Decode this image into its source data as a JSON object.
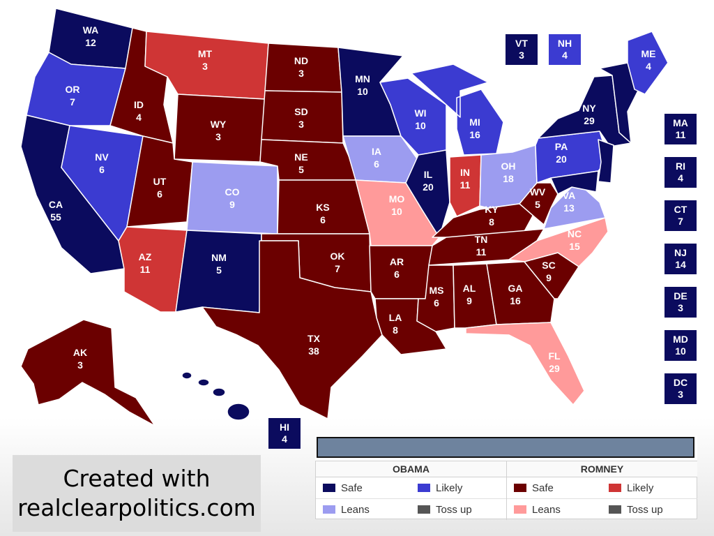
{
  "colors": {
    "obama_safe": "#0b0b5e",
    "obama_likely": "#3b3bd1",
    "obama_leans": "#9c9cf0",
    "romney_safe": "#6b0000",
    "romney_likely": "#cf3535",
    "romney_leans": "#ff9a9a",
    "tossup": "#555555"
  },
  "states": {
    "WA": {
      "abbr": "WA",
      "ev": "12",
      "rating": "obama_safe"
    },
    "OR": {
      "abbr": "OR",
      "ev": "7",
      "rating": "obama_likely"
    },
    "CA": {
      "abbr": "CA",
      "ev": "55",
      "rating": "obama_safe"
    },
    "NV": {
      "abbr": "NV",
      "ev": "6",
      "rating": "obama_likely"
    },
    "ID": {
      "abbr": "ID",
      "ev": "4",
      "rating": "romney_safe"
    },
    "MT": {
      "abbr": "MT",
      "ev": "3",
      "rating": "romney_likely"
    },
    "WY": {
      "abbr": "WY",
      "ev": "3",
      "rating": "romney_safe"
    },
    "UT": {
      "abbr": "UT",
      "ev": "6",
      "rating": "romney_safe"
    },
    "CO": {
      "abbr": "CO",
      "ev": "9",
      "rating": "obama_leans"
    },
    "AZ": {
      "abbr": "AZ",
      "ev": "11",
      "rating": "romney_likely"
    },
    "NM": {
      "abbr": "NM",
      "ev": "5",
      "rating": "obama_safe"
    },
    "ND": {
      "abbr": "ND",
      "ev": "3",
      "rating": "romney_safe"
    },
    "SD": {
      "abbr": "SD",
      "ev": "3",
      "rating": "romney_safe"
    },
    "NE": {
      "abbr": "NE",
      "ev": "5",
      "rating": "romney_safe"
    },
    "KS": {
      "abbr": "KS",
      "ev": "6",
      "rating": "romney_safe"
    },
    "OK": {
      "abbr": "OK",
      "ev": "7",
      "rating": "romney_safe"
    },
    "TX": {
      "abbr": "TX",
      "ev": "38",
      "rating": "romney_safe"
    },
    "MN": {
      "abbr": "MN",
      "ev": "10",
      "rating": "obama_safe"
    },
    "IA": {
      "abbr": "IA",
      "ev": "6",
      "rating": "obama_leans"
    },
    "MO": {
      "abbr": "MO",
      "ev": "10",
      "rating": "romney_leans"
    },
    "AR": {
      "abbr": "AR",
      "ev": "6",
      "rating": "romney_safe"
    },
    "LA": {
      "abbr": "LA",
      "ev": "8",
      "rating": "romney_safe"
    },
    "WI": {
      "abbr": "WI",
      "ev": "10",
      "rating": "obama_likely"
    },
    "IL": {
      "abbr": "IL",
      "ev": "20",
      "rating": "obama_safe"
    },
    "MI": {
      "abbr": "MI",
      "ev": "16",
      "rating": "obama_likely"
    },
    "IN": {
      "abbr": "IN",
      "ev": "11",
      "rating": "romney_likely"
    },
    "OH": {
      "abbr": "OH",
      "ev": "18",
      "rating": "obama_leans"
    },
    "KY": {
      "abbr": "KY",
      "ev": "8",
      "rating": "romney_safe"
    },
    "TN": {
      "abbr": "TN",
      "ev": "11",
      "rating": "romney_safe"
    },
    "MS": {
      "abbr": "MS",
      "ev": "6",
      "rating": "romney_safe"
    },
    "AL": {
      "abbr": "AL",
      "ev": "9",
      "rating": "romney_safe"
    },
    "GA": {
      "abbr": "GA",
      "ev": "16",
      "rating": "romney_safe"
    },
    "FL": {
      "abbr": "FL",
      "ev": "29",
      "rating": "romney_leans"
    },
    "SC": {
      "abbr": "SC",
      "ev": "9",
      "rating": "romney_safe"
    },
    "NC": {
      "abbr": "NC",
      "ev": "15",
      "rating": "romney_leans"
    },
    "VA": {
      "abbr": "VA",
      "ev": "13",
      "rating": "obama_leans"
    },
    "WV": {
      "abbr": "WV",
      "ev": "5",
      "rating": "romney_safe"
    },
    "PA": {
      "abbr": "PA",
      "ev": "20",
      "rating": "obama_likely"
    },
    "NY": {
      "abbr": "NY",
      "ev": "29",
      "rating": "obama_safe"
    },
    "ME": {
      "abbr": "ME",
      "ev": "4",
      "rating": "obama_likely"
    },
    "AK": {
      "abbr": "AK",
      "ev": "3",
      "rating": "romney_safe"
    },
    "HI": {
      "abbr": "HI",
      "ev": "4",
      "rating": "obama_safe"
    },
    "VT": {
      "abbr": "VT",
      "ev": "3",
      "rating": "obama_safe"
    },
    "NH": {
      "abbr": "NH",
      "ev": "4",
      "rating": "obama_likely"
    },
    "MA": {
      "abbr": "MA",
      "ev": "11",
      "rating": "obama_safe"
    },
    "RI": {
      "abbr": "RI",
      "ev": "4",
      "rating": "obama_safe"
    },
    "CT": {
      "abbr": "CT",
      "ev": "7",
      "rating": "obama_safe"
    },
    "NJ": {
      "abbr": "NJ",
      "ev": "14",
      "rating": "obama_safe"
    },
    "DE": {
      "abbr": "DE",
      "ev": "3",
      "rating": "obama_safe"
    },
    "MD": {
      "abbr": "MD",
      "ev": "10",
      "rating": "obama_safe"
    },
    "DC": {
      "abbr": "DC",
      "ev": "3",
      "rating": "obama_safe"
    }
  },
  "legend": {
    "obama": {
      "header": "OBAMA",
      "safe": "Safe",
      "likely": "Likely",
      "leans": "Leans",
      "tossup": "Toss up"
    },
    "romney": {
      "header": "ROMNEY",
      "safe": "Safe",
      "likely": "Likely",
      "leans": "Leans",
      "tossup": "Toss up"
    }
  },
  "credit": {
    "line1": "Created with",
    "line2": "realclearpolitics.com"
  }
}
